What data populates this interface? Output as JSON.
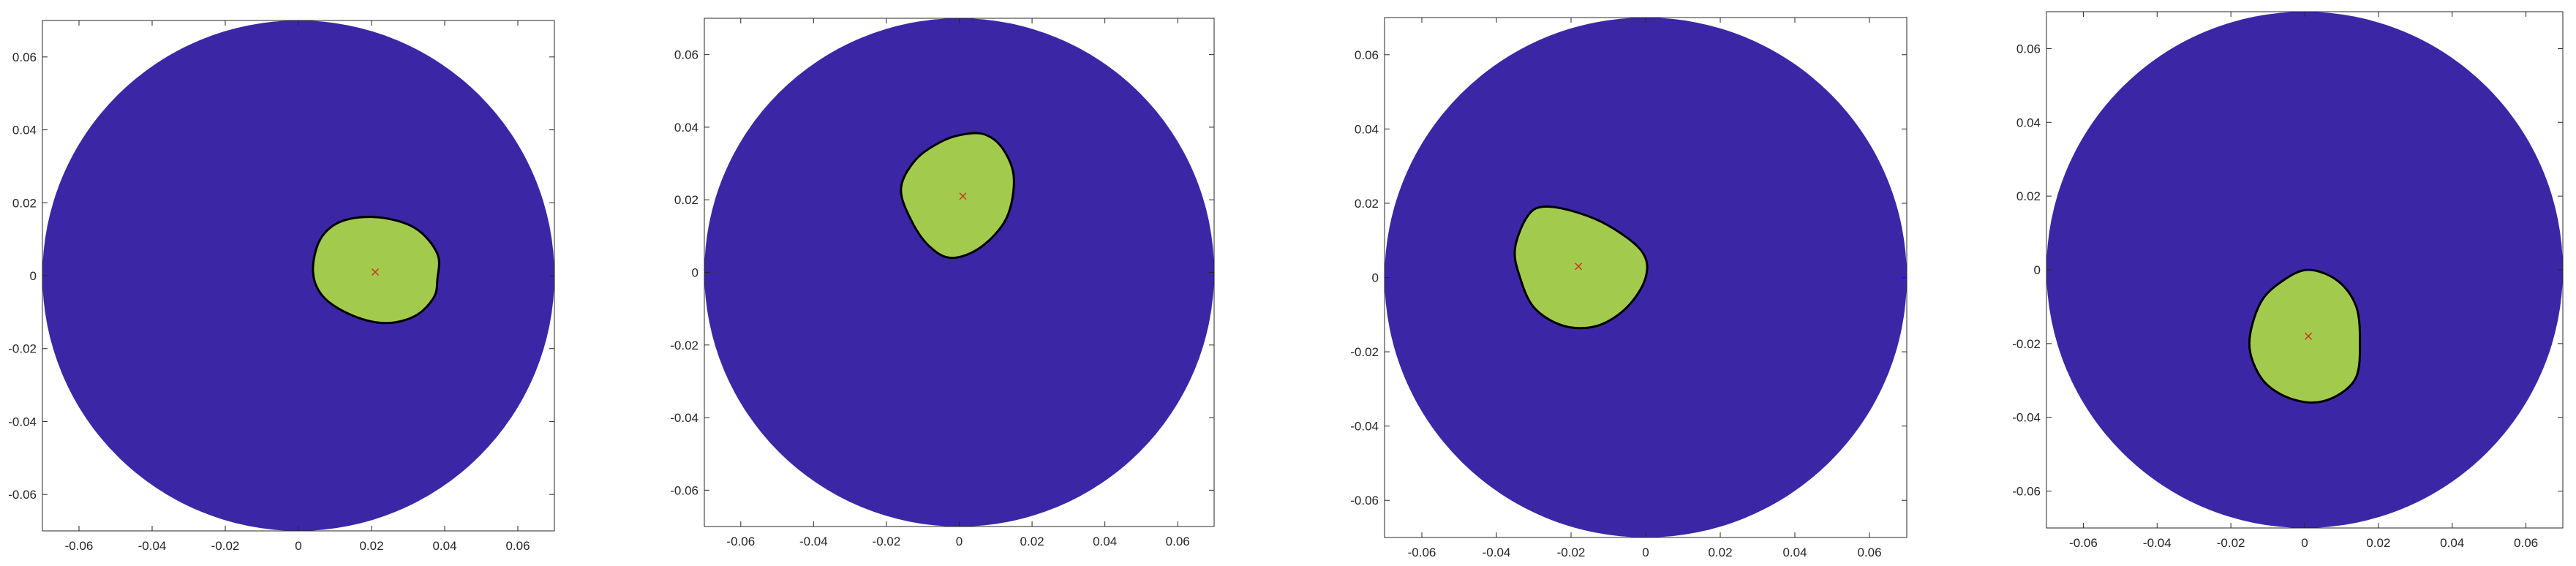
{
  "chart_data": [
    {
      "type": "region-plot",
      "xlim": [
        -0.07,
        0.07
      ],
      "ylim": [
        -0.07,
        0.07
      ],
      "xticks": [
        -0.06,
        -0.04,
        -0.02,
        0,
        0.02,
        0.04,
        0.06
      ],
      "yticks": [
        -0.06,
        -0.04,
        -0.02,
        0,
        0.02,
        0.04,
        0.06
      ],
      "xtick_labels": [
        "-0.06",
        "-0.04",
        "-0.02",
        "0",
        "0.02",
        "0.04",
        "0.06"
      ],
      "ytick_labels": [
        "-0.06",
        "-0.04",
        "-0.02",
        "0",
        "0.02",
        "0.04",
        "0.06"
      ],
      "grid": false,
      "domain": {
        "center": [
          0,
          0
        ],
        "radius": 0.07,
        "color": "#3b27a6"
      },
      "inclusion": {
        "color": "#a2cb4d",
        "boundary_color": "#000000",
        "center": [
          0.021,
          0.001
        ],
        "boundary": [
          [
            0.038,
            -0.001
          ],
          [
            0.038,
            0.006
          ],
          [
            0.032,
            0.013
          ],
          [
            0.022,
            0.016
          ],
          [
            0.012,
            0.015
          ],
          [
            0.006,
            0.01
          ],
          [
            0.004,
            0.001
          ],
          [
            0.007,
            -0.006
          ],
          [
            0.015,
            -0.011
          ],
          [
            0.024,
            -0.013
          ],
          [
            0.032,
            -0.011
          ],
          [
            0.037,
            -0.006
          ]
        ],
        "marker": {
          "symbol": "x",
          "color": "#cc3322"
        }
      }
    },
    {
      "type": "region-plot",
      "xlim": [
        -0.07,
        0.07
      ],
      "ylim": [
        -0.07,
        0.07
      ],
      "xticks": [
        -0.06,
        -0.04,
        -0.02,
        0,
        0.02,
        0.04,
        0.06
      ],
      "yticks": [
        -0.06,
        -0.04,
        -0.02,
        0,
        0.02,
        0.04,
        0.06
      ],
      "xtick_labels": [
        "-0.06",
        "-0.04",
        "-0.02",
        "0",
        "0.02",
        "0.04",
        "0.06"
      ],
      "ytick_labels": [
        "-0.06",
        "-0.04",
        "-0.02",
        "0",
        "0.02",
        "0.04",
        "0.06"
      ],
      "grid": false,
      "domain": {
        "center": [
          0,
          0
        ],
        "radius": 0.07,
        "color": "#3b27a6"
      },
      "inclusion": {
        "color": "#a2cb4d",
        "boundary_color": "#000000",
        "center": [
          0.001,
          0.021
        ],
        "boundary": [
          [
            0.007,
            0.038
          ],
          [
            0.012,
            0.034
          ],
          [
            0.015,
            0.026
          ],
          [
            0.013,
            0.015
          ],
          [
            0.006,
            0.007
          ],
          [
            -0.002,
            0.004
          ],
          [
            -0.008,
            0.007
          ],
          [
            -0.013,
            0.014
          ],
          [
            -0.016,
            0.023
          ],
          [
            -0.012,
            0.031
          ],
          [
            -0.005,
            0.036
          ],
          [
            0.001,
            0.038
          ]
        ],
        "marker": {
          "symbol": "x",
          "color": "#cc3322"
        }
      }
    },
    {
      "type": "region-plot",
      "xlim": [
        -0.07,
        0.07
      ],
      "ylim": [
        -0.07,
        0.07
      ],
      "xticks": [
        -0.06,
        -0.04,
        -0.02,
        0,
        0.02,
        0.04,
        0.06
      ],
      "yticks": [
        -0.06,
        -0.04,
        -0.02,
        0,
        0.02,
        0.04,
        0.06
      ],
      "xtick_labels": [
        "-0.06",
        "-0.04",
        "-0.02",
        "0",
        "0.02",
        "0.04",
        "0.06"
      ],
      "ytick_labels": [
        "-0.06",
        "-0.04",
        "-0.02",
        "0",
        "0.02",
        "0.04",
        "0.06"
      ],
      "grid": false,
      "domain": {
        "center": [
          0,
          0
        ],
        "radius": 0.07,
        "color": "#3b27a6"
      },
      "inclusion": {
        "color": "#a2cb4d",
        "boundary_color": "#000000",
        "center": [
          -0.018,
          0.003
        ],
        "boundary": [
          [
            -0.028,
            0.019
          ],
          [
            -0.02,
            0.018
          ],
          [
            -0.01,
            0.014
          ],
          [
            -0.001,
            0.007
          ],
          [
            0.0,
            0.0
          ],
          [
            -0.005,
            -0.008
          ],
          [
            -0.013,
            -0.013
          ],
          [
            -0.022,
            -0.013
          ],
          [
            -0.03,
            -0.008
          ],
          [
            -0.034,
            0.001
          ],
          [
            -0.035,
            0.008
          ],
          [
            -0.032,
            0.016
          ]
        ],
        "marker": {
          "symbol": "x",
          "color": "#cc3322"
        }
      }
    },
    {
      "type": "region-plot",
      "xlim": [
        -0.07,
        0.07
      ],
      "ylim": [
        -0.07,
        0.07
      ],
      "xticks": [
        -0.06,
        -0.04,
        -0.02,
        0,
        0.02,
        0.04,
        0.06
      ],
      "yticks": [
        -0.06,
        -0.04,
        -0.02,
        0,
        0.02,
        0.04,
        0.06
      ],
      "xtick_labels": [
        "-0.06",
        "-0.04",
        "-0.02",
        "0",
        "0.02",
        "0.04",
        "0.06"
      ],
      "ytick_labels": [
        "-0.06",
        "-0.04",
        "-0.02",
        "0",
        "0.02",
        "0.04",
        "0.06"
      ],
      "grid": false,
      "domain": {
        "center": [
          0,
          0
        ],
        "radius": 0.07,
        "color": "#3b27a6"
      },
      "inclusion": {
        "color": "#a2cb4d",
        "boundary_color": "#000000",
        "center": [
          0.001,
          -0.018
        ],
        "boundary": [
          [
            0.001,
            0.0
          ],
          [
            0.009,
            -0.003
          ],
          [
            0.014,
            -0.01
          ],
          [
            0.015,
            -0.02
          ],
          [
            0.014,
            -0.029
          ],
          [
            0.009,
            -0.034
          ],
          [
            0.002,
            -0.036
          ],
          [
            -0.006,
            -0.034
          ],
          [
            -0.012,
            -0.029
          ],
          [
            -0.015,
            -0.02
          ],
          [
            -0.012,
            -0.009
          ],
          [
            -0.006,
            -0.003
          ]
        ],
        "marker": {
          "symbol": "x",
          "color": "#cc3322"
        }
      }
    }
  ]
}
